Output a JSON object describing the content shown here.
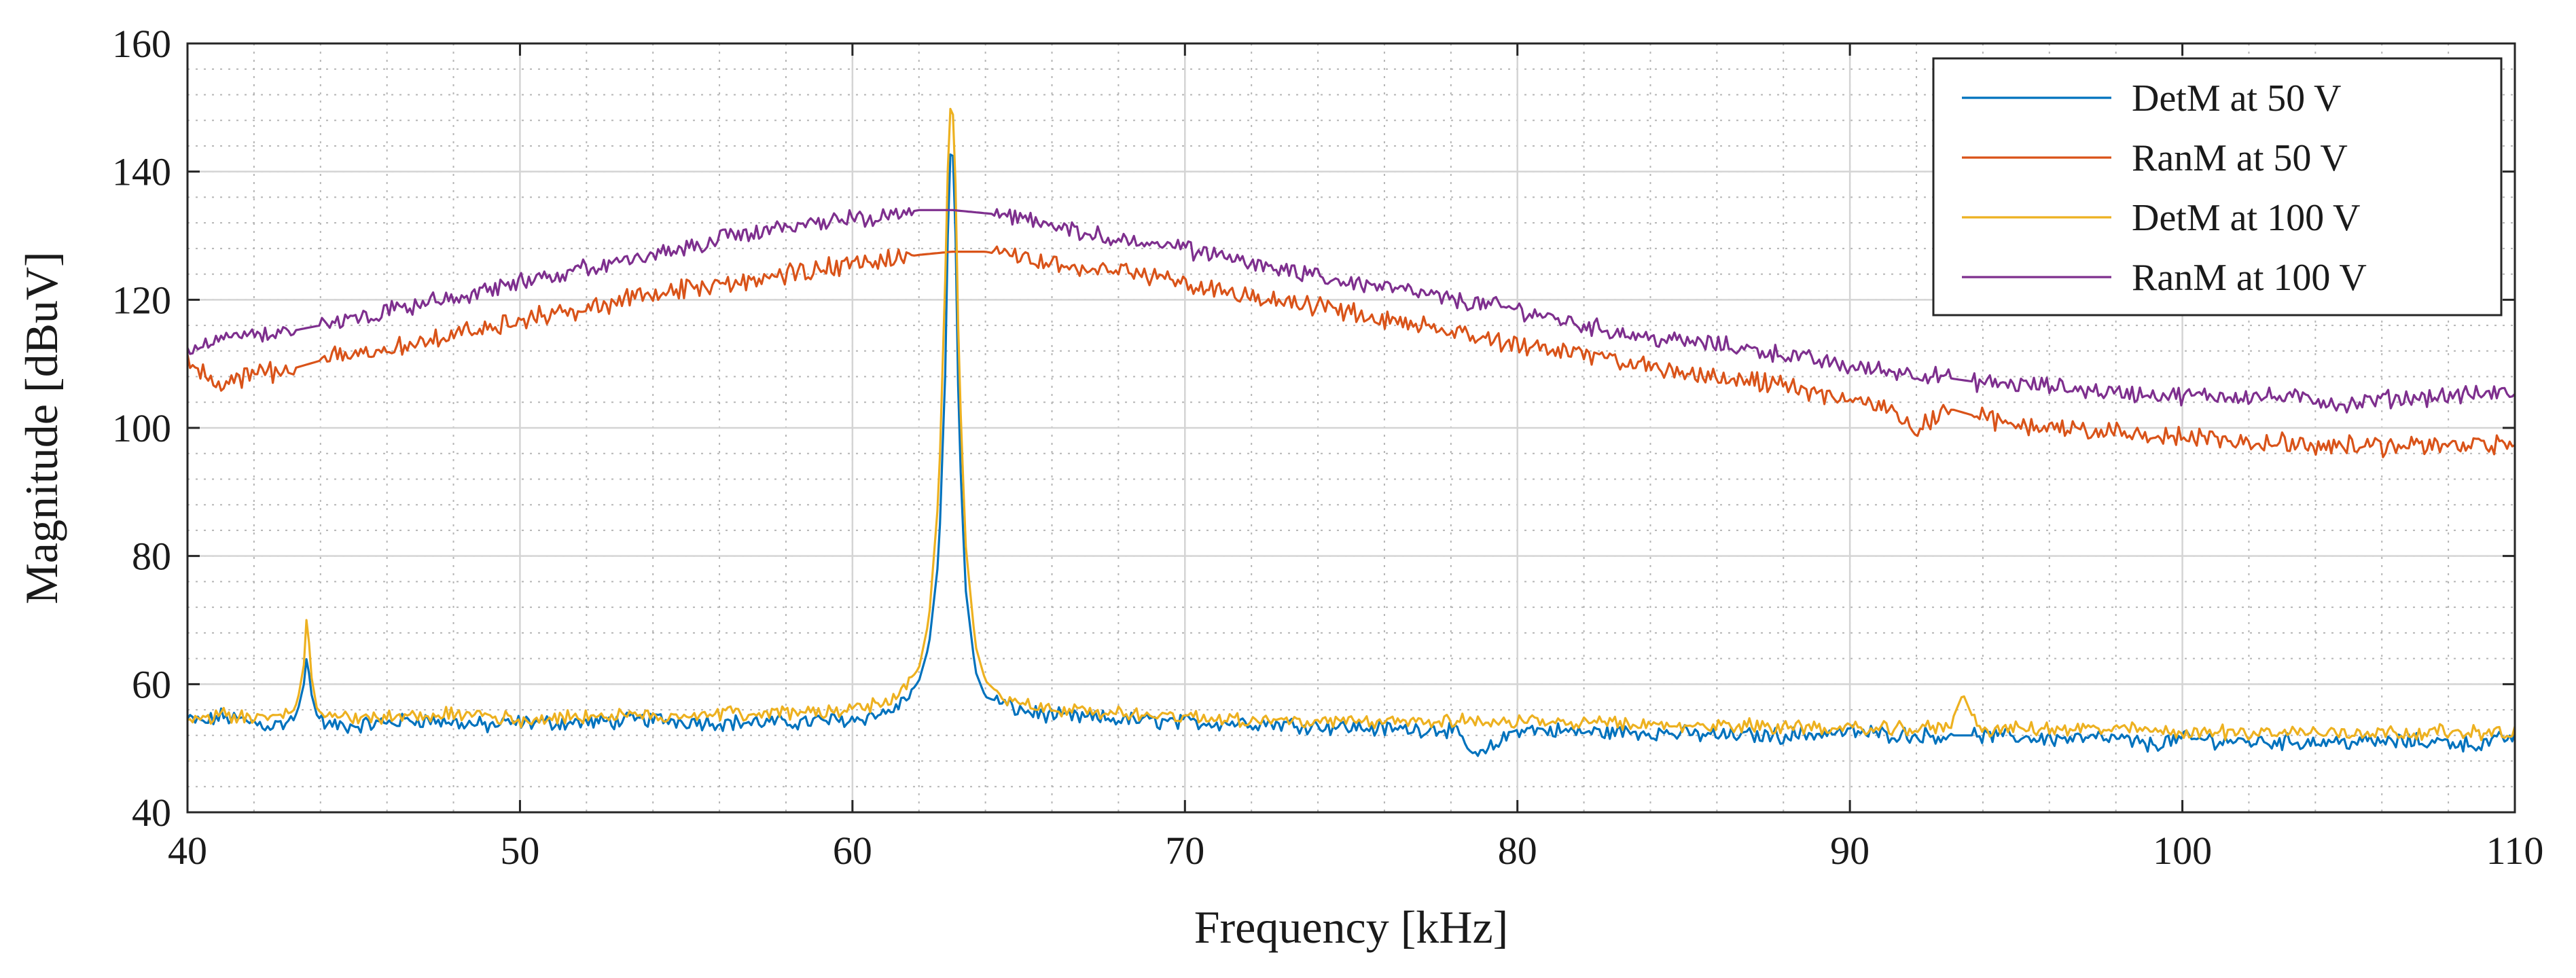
{
  "chart_data": {
    "type": "line",
    "title": "",
    "xlabel": "Frequency [kHz]",
    "ylabel": "Magnitude [dBuV]",
    "xlim": [
      40,
      110
    ],
    "ylim": [
      40,
      160
    ],
    "xticks": [
      40,
      50,
      60,
      70,
      80,
      90,
      100,
      110
    ],
    "yticks": [
      40,
      60,
      80,
      100,
      120,
      140,
      160
    ],
    "xtick_labels": [
      "40",
      "50",
      "60",
      "70",
      "80",
      "90",
      "100",
      "110"
    ],
    "ytick_labels": [
      "40",
      "60",
      "80",
      "100",
      "120",
      "140",
      "160"
    ],
    "grid": true,
    "minor_grid": true,
    "legend_position": "top-right",
    "series": [
      {
        "name": "DetM at 50 V",
        "color": "#0072BD",
        "x": [
          40,
          40.5,
          41,
          41.5,
          42,
          42.5,
          43,
          43.3,
          43.5,
          43.6,
          43.7,
          43.9,
          44.2,
          45,
          46,
          47,
          48,
          49,
          50,
          52,
          54,
          56,
          58,
          60,
          61,
          61.5,
          62,
          62.3,
          62.6,
          62.8,
          62.9,
          63,
          63.1,
          63.2,
          63.4,
          63.7,
          64,
          64.5,
          65,
          66,
          68,
          70,
          72,
          74,
          76,
          78,
          78.8,
          80,
          82,
          84,
          86,
          88,
          90,
          92,
          94,
          96,
          98,
          99,
          100,
          102,
          104,
          106,
          108,
          109,
          110
        ],
        "values": [
          54.5,
          54.0,
          55.0,
          54.5,
          54.0,
          53.5,
          54.0,
          55.5,
          60.0,
          65.0,
          59.0,
          55.0,
          53.5,
          53.5,
          54.0,
          54.5,
          54.0,
          53.5,
          54.0,
          54.0,
          54.5,
          54.0,
          54.0,
          54.5,
          55.5,
          57.0,
          60.5,
          66.0,
          80.0,
          110.0,
          140.0,
          146.0,
          130.0,
          100.0,
          75.0,
          62.0,
          58.0,
          57.0,
          56.0,
          55.0,
          54.5,
          54.0,
          54.0,
          53.5,
          53.0,
          53.0,
          48.5,
          53.0,
          52.5,
          52.5,
          52.0,
          52.0,
          52.5,
          52.0,
          52.0,
          51.5,
          51.5,
          50.5,
          51.5,
          51.0,
          51.0,
          51.0,
          51.0,
          50.5,
          52.0
        ]
      },
      {
        "name": "RanM at 50 V",
        "color": "#D95319",
        "x": [
          40,
          41,
          42,
          43,
          44,
          45,
          46,
          48,
          50,
          52,
          54,
          56,
          58,
          60,
          62,
          63,
          64,
          65,
          66,
          68,
          70,
          72,
          74,
          76,
          78,
          80,
          82,
          84,
          86,
          88,
          90,
          91,
          92,
          93,
          94,
          95,
          96,
          98,
          100,
          102,
          104,
          106,
          108,
          110
        ],
        "values": [
          110.0,
          107.0,
          108.5,
          109.0,
          110.5,
          111.5,
          112.5,
          114.5,
          117.0,
          118.5,
          121.0,
          122.0,
          124.0,
          125.5,
          127.0,
          127.5,
          127.5,
          126.5,
          125.5,
          124.5,
          122.5,
          120.5,
          119.0,
          117.0,
          115.5,
          113.0,
          111.5,
          109.5,
          108.0,
          106.5,
          104.5,
          103.5,
          100.0,
          103.0,
          101.5,
          100.5,
          100.0,
          99.5,
          98.5,
          98.0,
          97.5,
          97.0,
          97.5,
          97.5
        ]
      },
      {
        "name": "DetM at 100 V",
        "color": "#EDB120",
        "x": [
          40,
          40.5,
          41,
          41.5,
          42,
          42.5,
          43,
          43.3,
          43.5,
          43.6,
          43.7,
          43.9,
          44.2,
          45,
          46,
          47,
          48,
          49,
          50,
          52,
          54,
          56,
          58,
          60,
          61,
          61.5,
          62,
          62.3,
          62.6,
          62.8,
          62.9,
          63,
          63.1,
          63.2,
          63.4,
          63.7,
          64,
          64.5,
          65,
          66,
          68,
          70,
          72,
          74,
          76,
          78,
          80,
          82,
          84,
          86,
          88,
          90,
          92,
          93,
          93.4,
          93.8,
          94,
          96,
          98,
          100,
          102,
          104,
          106,
          108,
          110
        ],
        "values": [
          55.0,
          54.5,
          55.0,
          55.0,
          54.5,
          55.0,
          55.5,
          57.0,
          63.0,
          72.0,
          62.0,
          56.0,
          55.0,
          54.5,
          55.0,
          55.0,
          55.5,
          55.0,
          54.5,
          55.0,
          55.0,
          55.5,
          55.5,
          56.0,
          57.0,
          59.0,
          62.5,
          70.0,
          90.0,
          125.0,
          148.0,
          152.0,
          138.0,
          110.0,
          82.0,
          66.0,
          60.5,
          58.0,
          57.0,
          56.0,
          55.5,
          55.0,
          54.5,
          54.0,
          54.0,
          54.5,
          54.0,
          54.0,
          53.5,
          53.5,
          53.5,
          53.0,
          53.0,
          53.5,
          58.5,
          53.5,
          53.0,
          53.0,
          53.0,
          52.5,
          52.5,
          52.5,
          52.5,
          52.5,
          52.5
        ]
      },
      {
        "name": "RanM at 100 V",
        "color": "#7E2F8E",
        "x": [
          40,
          41,
          42,
          43,
          44,
          45,
          46,
          48,
          50,
          52,
          54,
          56,
          58,
          59,
          60,
          61,
          62,
          63,
          64,
          65,
          66,
          68,
          70,
          72,
          74,
          76,
          78,
          80,
          82,
          84,
          86,
          88,
          90,
          92,
          94,
          96,
          98,
          100,
          102,
          104,
          105,
          106,
          108,
          110
        ],
        "values": [
          112.0,
          114.0,
          114.5,
          115.0,
          116.0,
          117.5,
          118.5,
          120.5,
          122.5,
          125.0,
          127.0,
          129.5,
          131.5,
          132.5,
          132.5,
          133.0,
          134.0,
          134.0,
          133.5,
          133.0,
          131.5,
          129.5,
          128.0,
          125.5,
          123.5,
          122.0,
          120.0,
          118.5,
          116.0,
          114.0,
          113.0,
          111.5,
          109.5,
          108.5,
          107.0,
          106.5,
          105.5,
          105.0,
          105.0,
          104.5,
          103.5,
          104.5,
          105.0,
          105.5
        ]
      }
    ]
  }
}
